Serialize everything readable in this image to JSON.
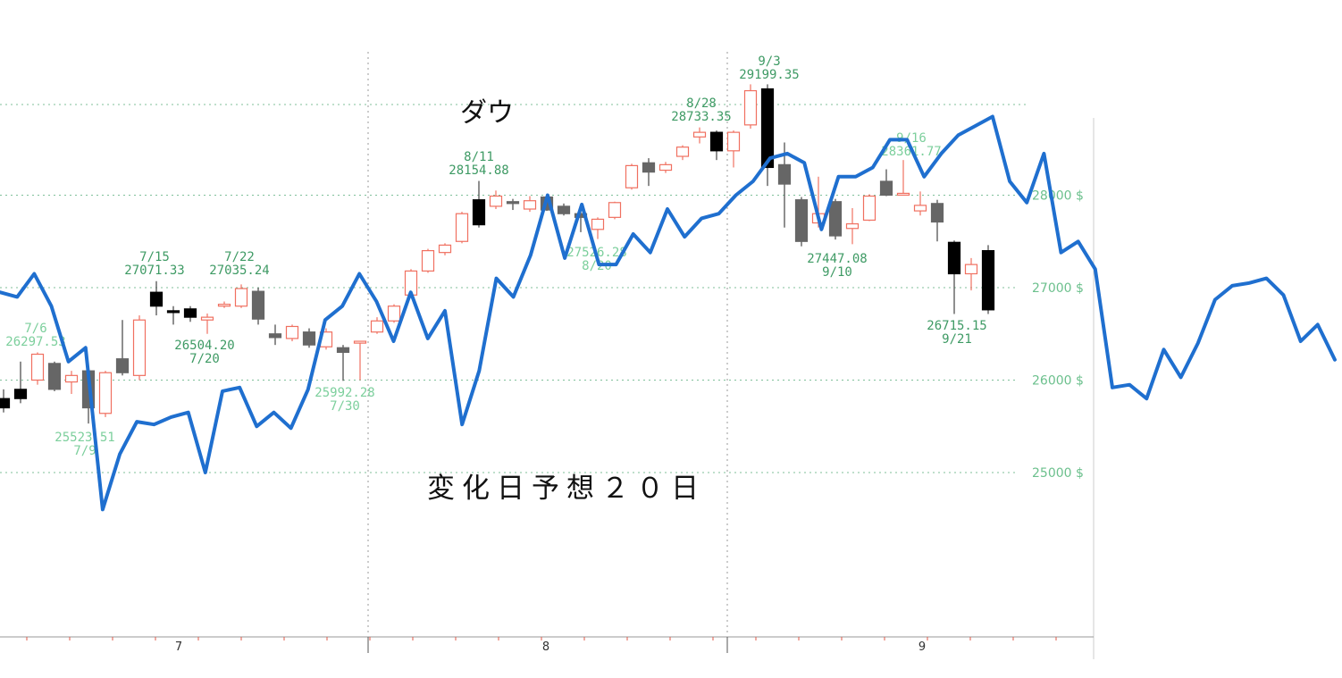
{
  "chart_data": {
    "type": "line",
    "title": "ダウ",
    "annotation": "変化日予想２０日",
    "currency_suffix": " $",
    "y_ticks": [
      25000,
      26000,
      27000,
      28000
    ],
    "y_tick_labels": [
      "25000 $",
      "26000 $",
      "27000 $",
      "28000 $"
    ],
    "x_tick_labels": [
      "7",
      "8",
      "9"
    ],
    "colors": {
      "forecast_line": "#1f6fcf",
      "up_candle": "#f07060",
      "down_candle_dark": "#000000",
      "down_candle_gray": "#666666",
      "labels": "#3e9a64"
    },
    "candles": [
      {
        "o": 25700,
        "h": 25900,
        "l": 25650,
        "c": 25800,
        "dir": "down"
      },
      {
        "o": 25800,
        "h": 26200,
        "l": 25750,
        "c": 25900,
        "dir": "down"
      },
      {
        "o": 26000,
        "h": 26300,
        "l": 25950,
        "c": 26280,
        "dir": "up"
      },
      {
        "o": 26180,
        "h": 26200,
        "l": 25880,
        "c": 25900,
        "dir": "gray"
      },
      {
        "o": 25980,
        "h": 26100,
        "l": 25850,
        "c": 26050,
        "dir": "up"
      },
      {
        "o": 26100,
        "h": 26150,
        "l": 25530,
        "c": 25700,
        "dir": "gray"
      },
      {
        "o": 25640,
        "h": 26100,
        "l": 25600,
        "c": 26080,
        "dir": "up"
      },
      {
        "o": 26080,
        "h": 26650,
        "l": 26050,
        "c": 26230,
        "dir": "gray"
      },
      {
        "o": 26050,
        "h": 26700,
        "l": 26000,
        "c": 26650,
        "dir": "up"
      },
      {
        "o": 26950,
        "h": 27070,
        "l": 26700,
        "c": 26800,
        "dir": "down"
      },
      {
        "o": 26750,
        "h": 26800,
        "l": 26600,
        "c": 26740,
        "dir": "down"
      },
      {
        "o": 26770,
        "h": 26800,
        "l": 26630,
        "c": 26680,
        "dir": "down"
      },
      {
        "o": 26650,
        "h": 26720,
        "l": 26500,
        "c": 26680,
        "dir": "up"
      },
      {
        "o": 26800,
        "h": 26850,
        "l": 26780,
        "c": 26820,
        "dir": "up"
      },
      {
        "o": 26800,
        "h": 27035,
        "l": 26780,
        "c": 26990,
        "dir": "up"
      },
      {
        "o": 26960,
        "h": 27000,
        "l": 26600,
        "c": 26660,
        "dir": "gray"
      },
      {
        "o": 26500,
        "h": 26600,
        "l": 26380,
        "c": 26460,
        "dir": "gray"
      },
      {
        "o": 26450,
        "h": 26600,
        "l": 26420,
        "c": 26580,
        "dir": "up"
      },
      {
        "o": 26520,
        "h": 26560,
        "l": 26350,
        "c": 26380,
        "dir": "gray"
      },
      {
        "o": 26360,
        "h": 26560,
        "l": 26330,
        "c": 26520,
        "dir": "up"
      },
      {
        "o": 26350,
        "h": 26380,
        "l": 25992,
        "c": 26300,
        "dir": "gray"
      },
      {
        "o": 26400,
        "h": 26420,
        "l": 26000,
        "c": 26420,
        "dir": "up"
      },
      {
        "o": 26520,
        "h": 26680,
        "l": 26500,
        "c": 26640,
        "dir": "up"
      },
      {
        "o": 26640,
        "h": 26820,
        "l": 26620,
        "c": 26800,
        "dir": "up"
      },
      {
        "o": 26920,
        "h": 27200,
        "l": 26900,
        "c": 27180,
        "dir": "up"
      },
      {
        "o": 27180,
        "h": 27420,
        "l": 27160,
        "c": 27400,
        "dir": "up"
      },
      {
        "o": 27380,
        "h": 27480,
        "l": 27350,
        "c": 27460,
        "dir": "up"
      },
      {
        "o": 27500,
        "h": 27820,
        "l": 27480,
        "c": 27800,
        "dir": "up"
      },
      {
        "o": 27950,
        "h": 28154,
        "l": 27650,
        "c": 27680,
        "dir": "down"
      },
      {
        "o": 27880,
        "h": 28050,
        "l": 27850,
        "c": 27990,
        "dir": "up"
      },
      {
        "o": 27930,
        "h": 27960,
        "l": 27840,
        "c": 27910,
        "dir": "gray"
      },
      {
        "o": 27850,
        "h": 27990,
        "l": 27820,
        "c": 27940,
        "dir": "up"
      },
      {
        "o": 27980,
        "h": 28000,
        "l": 27830,
        "c": 27840,
        "dir": "gray"
      },
      {
        "o": 27880,
        "h": 27910,
        "l": 27780,
        "c": 27800,
        "dir": "gray"
      },
      {
        "o": 27800,
        "h": 27820,
        "l": 27600,
        "c": 27760,
        "dir": "gray"
      },
      {
        "o": 27630,
        "h": 27760,
        "l": 27526,
        "c": 27740,
        "dir": "up"
      },
      {
        "o": 27760,
        "h": 27930,
        "l": 27740,
        "c": 27920,
        "dir": "up"
      },
      {
        "o": 28080,
        "h": 28340,
        "l": 28060,
        "c": 28320,
        "dir": "up"
      },
      {
        "o": 28350,
        "h": 28400,
        "l": 28100,
        "c": 28250,
        "dir": "gray"
      },
      {
        "o": 28270,
        "h": 28360,
        "l": 28240,
        "c": 28330,
        "dir": "up"
      },
      {
        "o": 28420,
        "h": 28540,
        "l": 28380,
        "c": 28520,
        "dir": "up"
      },
      {
        "o": 28630,
        "h": 28733,
        "l": 28560,
        "c": 28680,
        "dir": "up"
      },
      {
        "o": 28680,
        "h": 28700,
        "l": 28380,
        "c": 28480,
        "dir": "down"
      },
      {
        "o": 28480,
        "h": 28700,
        "l": 28300,
        "c": 28680,
        "dir": "up"
      },
      {
        "o": 28760,
        "h": 29199,
        "l": 28720,
        "c": 29130,
        "dir": "up"
      },
      {
        "o": 29150,
        "h": 29199,
        "l": 28100,
        "c": 28300,
        "dir": "down"
      },
      {
        "o": 28330,
        "h": 28570,
        "l": 27650,
        "c": 28120,
        "dir": "gray"
      },
      {
        "o": 27950,
        "h": 27980,
        "l": 27447,
        "c": 27500,
        "dir": "gray"
      },
      {
        "o": 27800,
        "h": 28200,
        "l": 27650,
        "c": 27700,
        "dir": "up"
      },
      {
        "o": 27930,
        "h": 27960,
        "l": 27520,
        "c": 27560,
        "dir": "gray"
      },
      {
        "o": 27640,
        "h": 27860,
        "l": 27470,
        "c": 27690,
        "dir": "up"
      },
      {
        "o": 27730,
        "h": 28010,
        "l": 27720,
        "c": 27990,
        "dir": "up"
      },
      {
        "o": 28150,
        "h": 28280,
        "l": 27990,
        "c": 28000,
        "dir": "gray"
      },
      {
        "o": 28010,
        "h": 28380,
        "l": 28000,
        "c": 28020,
        "dir": "up"
      },
      {
        "o": 27890,
        "h": 28040,
        "l": 27780,
        "c": 27830,
        "dir": "up"
      },
      {
        "o": 27910,
        "h": 27950,
        "l": 27500,
        "c": 27710,
        "dir": "gray"
      },
      {
        "o": 27490,
        "h": 27510,
        "l": 26715,
        "c": 27150,
        "dir": "down"
      },
      {
        "o": 27150,
        "h": 27320,
        "l": 26970,
        "c": 27250,
        "dir": "up"
      },
      {
        "o": 27400,
        "h": 27460,
        "l": 26715,
        "c": 26760,
        "dir": "down"
      }
    ],
    "forecast_series": {
      "y": [
        26950,
        26900,
        27150,
        26800,
        26200,
        26350,
        24600,
        25200,
        25550,
        25520,
        25600,
        25650,
        25000,
        25880,
        25920,
        25500,
        25650,
        25480,
        25900,
        26650,
        26800,
        27150,
        26850,
        26420,
        26950,
        26450,
        26750,
        25520,
        26100,
        27100,
        26900,
        27350,
        28000,
        27320,
        27900,
        27250,
        27250,
        27580,
        27380,
        27850,
        27550,
        27750,
        27800,
        28000,
        28150,
        28400,
        28450,
        28350,
        27630,
        28200,
        28200,
        28300,
        28600,
        28600,
        28200,
        28450,
        28650,
        28750,
        28850,
        28150,
        27920,
        28450,
        27380,
        27500,
        27200,
        25920,
        25950,
        25800,
        26330,
        26030,
        26400,
        26870,
        27020,
        27050,
        27100,
        26920,
        26420,
        26600,
        26220
      ]
    },
    "annotations": [
      {
        "date": "7/6",
        "value": "26297.53"
      },
      {
        "date": "7/9",
        "value": "25523.51"
      },
      {
        "date": "7/15",
        "value": "27071.33"
      },
      {
        "date": "7/20",
        "value": "26504.20"
      },
      {
        "date": "7/22",
        "value": "27035.24"
      },
      {
        "date": "7/30",
        "value": "25992.28"
      },
      {
        "date": "8/11",
        "value": "28154.88"
      },
      {
        "date": "8/20",
        "value": "27526.28"
      },
      {
        "date": "8/28",
        "value": "28733.35"
      },
      {
        "date": "9/3",
        "value": "29199.35"
      },
      {
        "date": "9/10",
        "value": "27447.08"
      },
      {
        "date": "9/16",
        "value": "28361.77"
      },
      {
        "date": "9/21",
        "value": "26715.15"
      }
    ]
  }
}
